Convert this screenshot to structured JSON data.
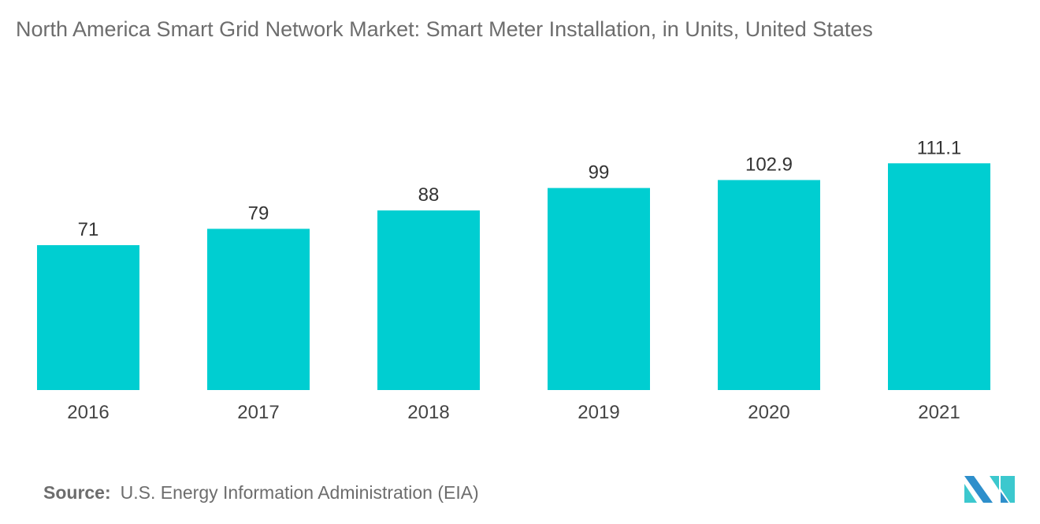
{
  "chart_data": {
    "type": "bar",
    "title": "North America Smart Grid Network Market: Smart Meter Installation, in Units, United States",
    "categories": [
      "2016",
      "2017",
      "2018",
      "2019",
      "2020",
      "2021"
    ],
    "values": [
      71,
      79,
      88,
      99,
      102.9,
      111.1
    ],
    "value_labels": [
      "71",
      "79",
      "88",
      "99",
      "102.9",
      "111.1"
    ],
    "xlabel": "",
    "ylabel": "",
    "ylim": [
      0,
      120
    ],
    "grid": false,
    "bar_color": "#00CED1"
  },
  "source": {
    "label": "Source:",
    "text": "U.S. Energy Information Administration (EIA)"
  },
  "logo": {
    "text": "MN",
    "colors": [
      "#2E8FCB",
      "#3CC8CE"
    ]
  }
}
